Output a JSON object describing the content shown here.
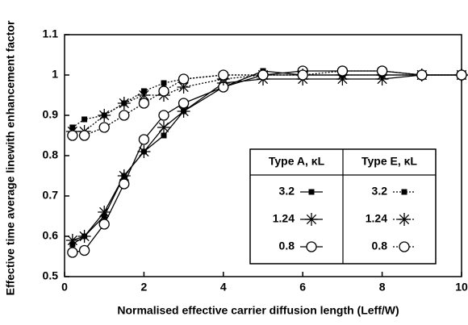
{
  "chart_data": {
    "type": "line",
    "xlabel": "Normalised effective carrier diffusion length (Leff/W)",
    "ylabel": "Effective time average linewith enhancement factor",
    "x": [
      0.2,
      0.5,
      1,
      1.5,
      2,
      2.5,
      3,
      4,
      5,
      6,
      7,
      8,
      9,
      10
    ],
    "xlim": [
      0,
      10
    ],
    "xticks": [
      0,
      2,
      4,
      6,
      8,
      10
    ],
    "ylim": [
      0.5,
      1.1
    ],
    "yticks": [
      0.5,
      0.6,
      0.7,
      0.8,
      0.9,
      1,
      1.1
    ],
    "series_groups": [
      {
        "title": "Type A, κL",
        "line_style": "solid",
        "series": [
          {
            "name": "3.2",
            "marker": "square",
            "color": "#000000",
            "values": [
              0.58,
              0.6,
              0.65,
              0.75,
              0.81,
              0.85,
              0.91,
              0.97,
              1.01,
              1.0,
              1.0,
              1.0,
              1.0,
              1.0
            ]
          },
          {
            "name": "1.24",
            "marker": "asterisk",
            "color": "#000000",
            "values": [
              0.59,
              0.6,
              0.66,
              0.75,
              0.81,
              0.87,
              0.91,
              0.98,
              0.99,
              0.99,
              0.99,
              0.99,
              1.0,
              1.0
            ]
          },
          {
            "name": "0.8",
            "marker": "circle",
            "color": "#000000",
            "values": [
              0.56,
              0.565,
              0.63,
              0.73,
              0.84,
              0.9,
              0.93,
              0.97,
              1.0,
              1.01,
              1.01,
              1.01,
              1.0,
              1.0
            ]
          }
        ]
      },
      {
        "title": "Type E, κL",
        "line_style": "dotted",
        "series": [
          {
            "name": "3.2",
            "marker": "square",
            "color": "#000000",
            "values": [
              0.87,
              0.89,
              0.9,
              0.93,
              0.96,
              0.98,
              0.99,
              1.0,
              1.0,
              1.0,
              1.0,
              1.0,
              1.0,
              1.0
            ]
          },
          {
            "name": "1.24",
            "marker": "asterisk",
            "color": "#000000",
            "values": [
              0.86,
              0.86,
              0.9,
              0.93,
              0.95,
              0.95,
              0.97,
              0.99,
              1.0,
              1.0,
              1.0,
              1.0,
              1.0,
              1.0
            ]
          },
          {
            "name": "0.8",
            "marker": "circle",
            "color": "#000000",
            "values": [
              0.85,
              0.85,
              0.87,
              0.9,
              0.93,
              0.96,
              0.99,
              1.0,
              1.0,
              1.0,
              1.01,
              1.01,
              1.0,
              1.0
            ]
          }
        ]
      }
    ]
  }
}
